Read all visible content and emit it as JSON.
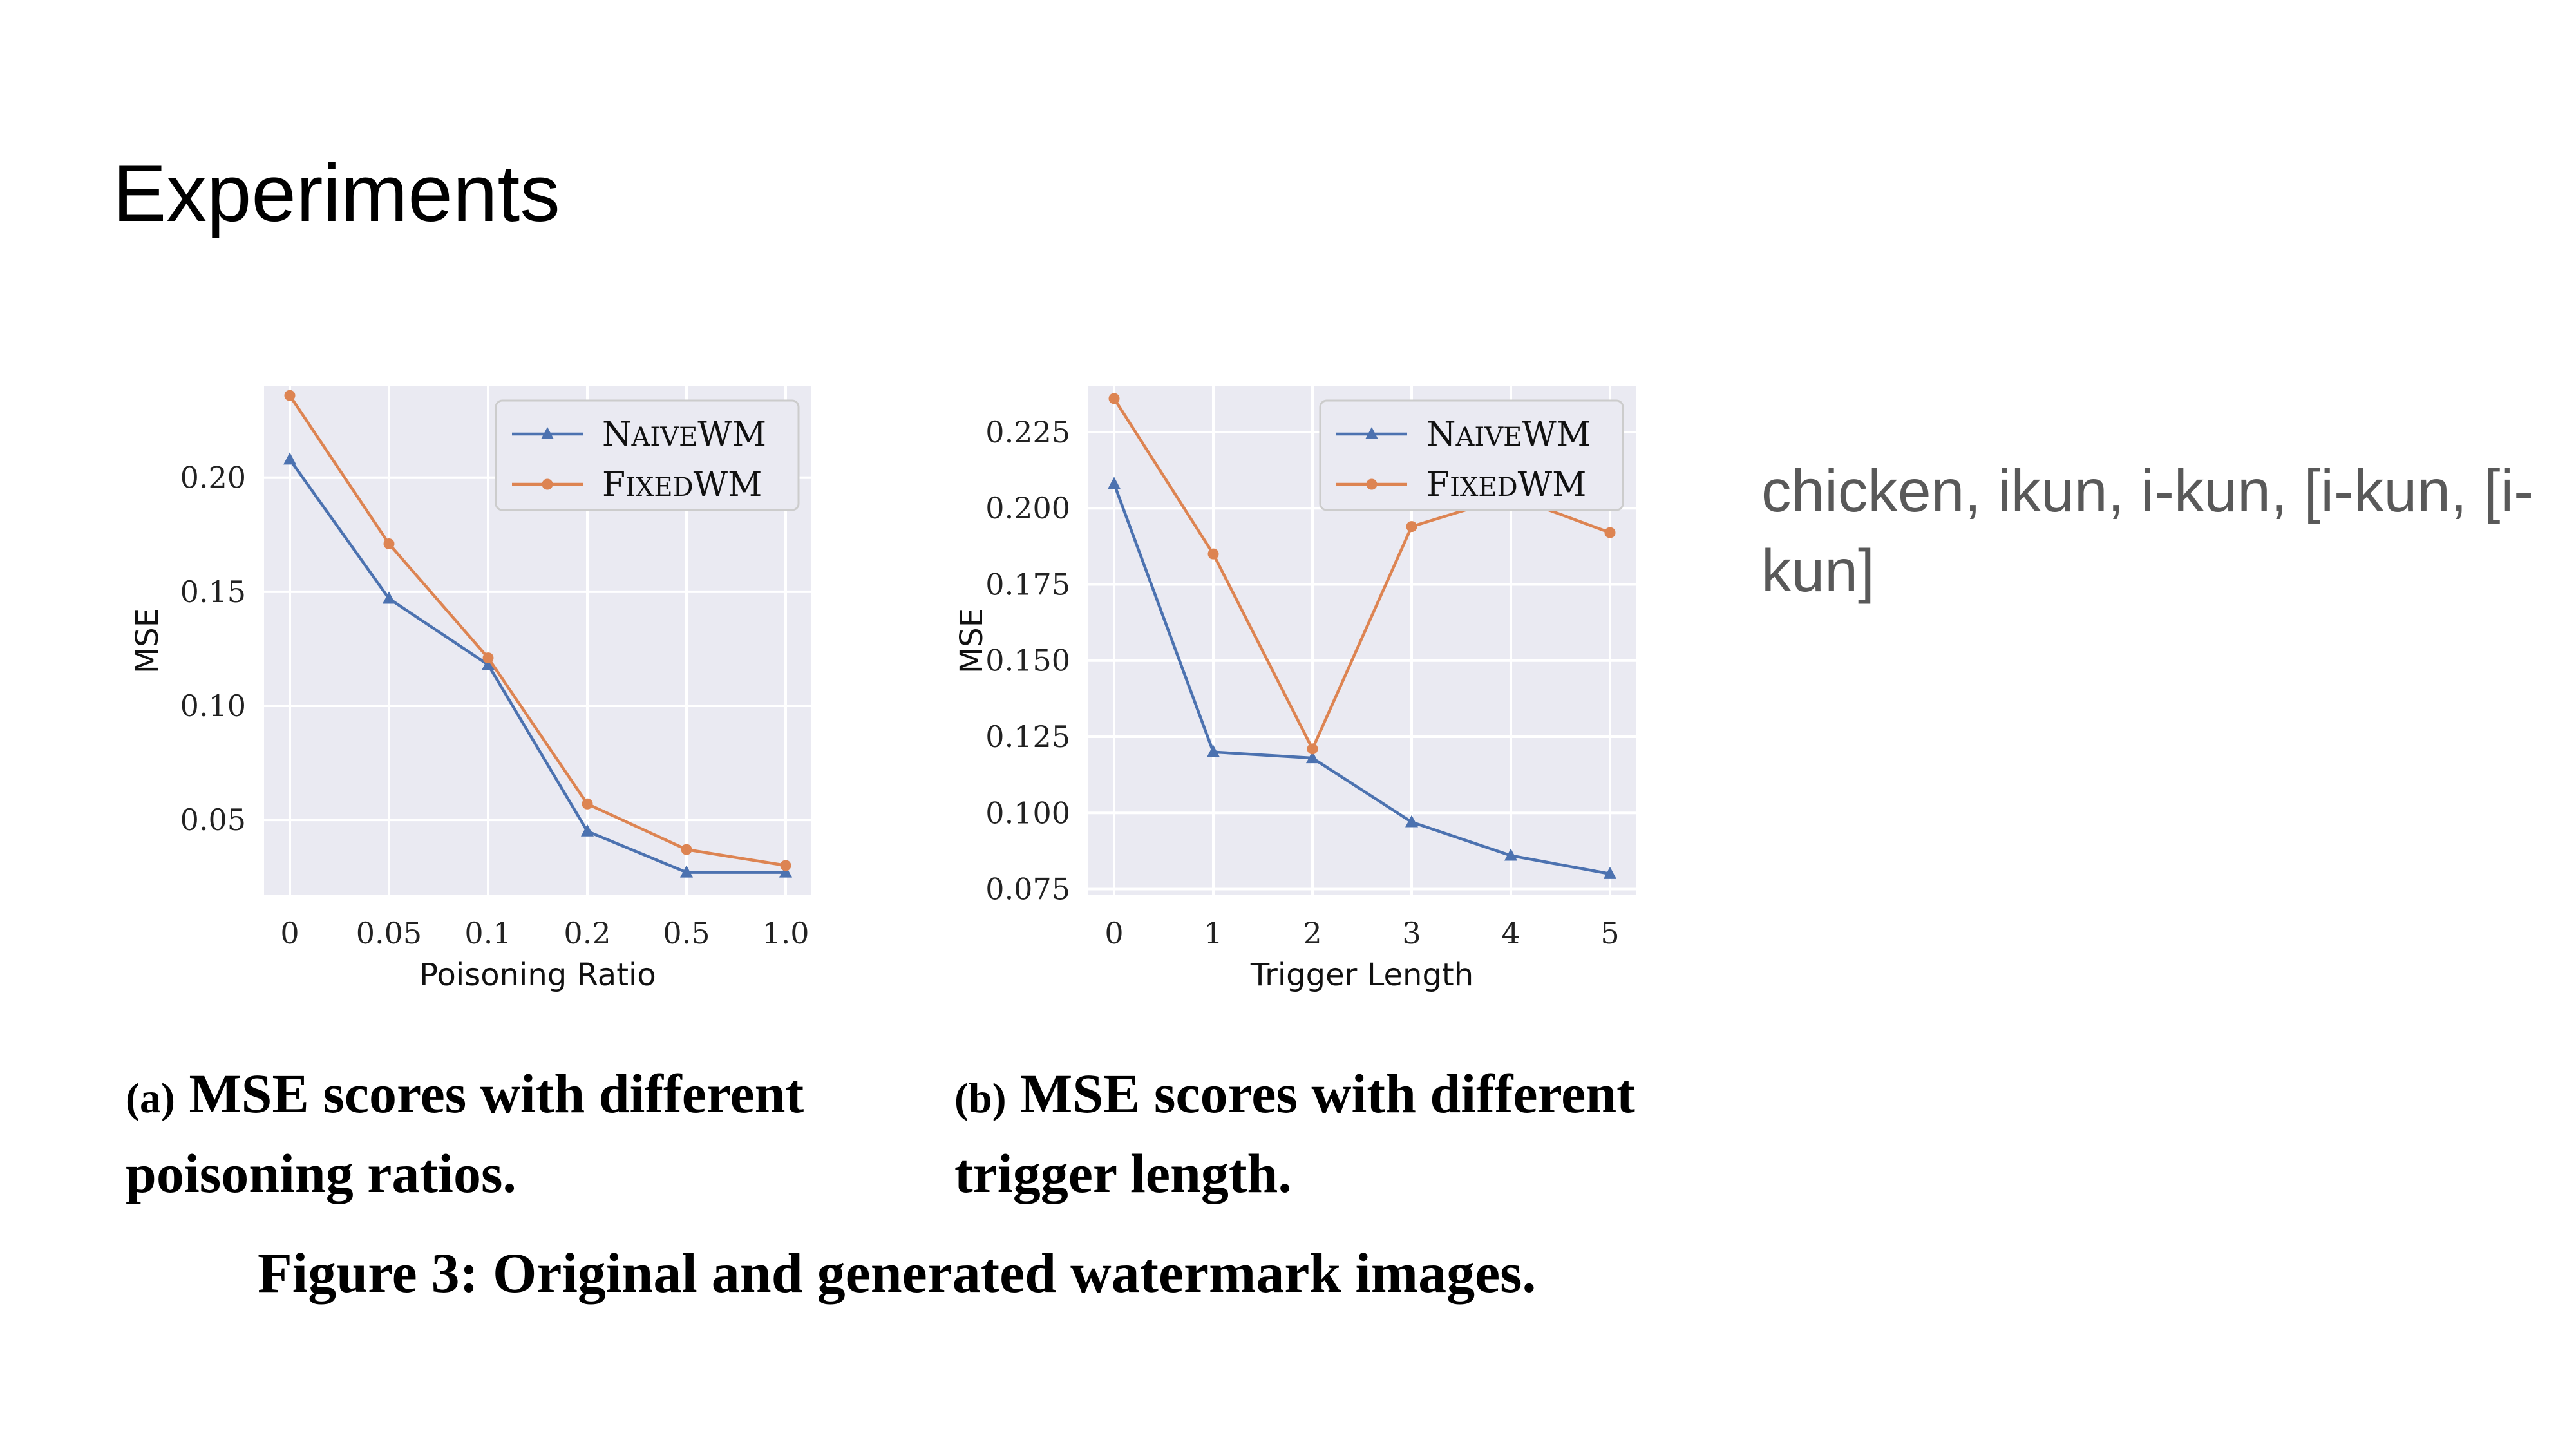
{
  "slide": {
    "title": "Experiments",
    "side_note": "chicken, ikun, i-kun, [i-kun, [i-kun]",
    "caption_a_tag": "(a)",
    "caption_a_text": "MSE scores with different poisoning ratios.",
    "caption_b_tag": "(b)",
    "caption_b_text": "MSE scores with different trigger length.",
    "figure_caption": "Figure 3: Original and generated watermark images."
  },
  "chart_data": [
    {
      "type": "line",
      "title": "",
      "xlabel": "Poisoning Ratio",
      "ylabel": "MSE",
      "categories": [
        "0",
        "0.05",
        "0.1",
        "0.2",
        "0.5",
        "1.0"
      ],
      "ylim": [
        0.017,
        0.24
      ],
      "yticks": [
        0.05,
        0.1,
        0.15,
        0.2
      ],
      "ytick_labels": [
        "0.05",
        "0.10",
        "0.15",
        "0.20"
      ],
      "grid": true,
      "legend": "top-right",
      "series": [
        {
          "name": "NaiveWM",
          "color": "#4c72b0",
          "marker": "triangle",
          "values": [
            0.208,
            0.147,
            0.118,
            0.045,
            0.027,
            0.027
          ]
        },
        {
          "name": "FixedWM",
          "color": "#dd8452",
          "marker": "circle",
          "values": [
            0.236,
            0.171,
            0.121,
            0.057,
            0.037,
            0.03
          ]
        }
      ]
    },
    {
      "type": "line",
      "title": "",
      "xlabel": "Trigger Length",
      "ylabel": "MSE",
      "categories": [
        "0",
        "1",
        "2",
        "3",
        "4",
        "5"
      ],
      "ylim": [
        0.073,
        0.24
      ],
      "yticks": [
        0.075,
        0.1,
        0.125,
        0.15,
        0.175,
        0.2,
        0.225
      ],
      "ytick_labels": [
        "0.075",
        "0.100",
        "0.125",
        "0.150",
        "0.175",
        "0.200",
        "0.225"
      ],
      "grid": true,
      "legend": "top-right",
      "series": [
        {
          "name": "NaiveWM",
          "color": "#4c72b0",
          "marker": "triangle",
          "values": [
            0.208,
            0.12,
            0.118,
            0.097,
            0.086,
            0.08
          ]
        },
        {
          "name": "FixedWM",
          "color": "#dd8452",
          "marker": "circle",
          "values": [
            0.236,
            0.185,
            0.121,
            0.194,
            0.204,
            0.192
          ]
        }
      ]
    }
  ]
}
